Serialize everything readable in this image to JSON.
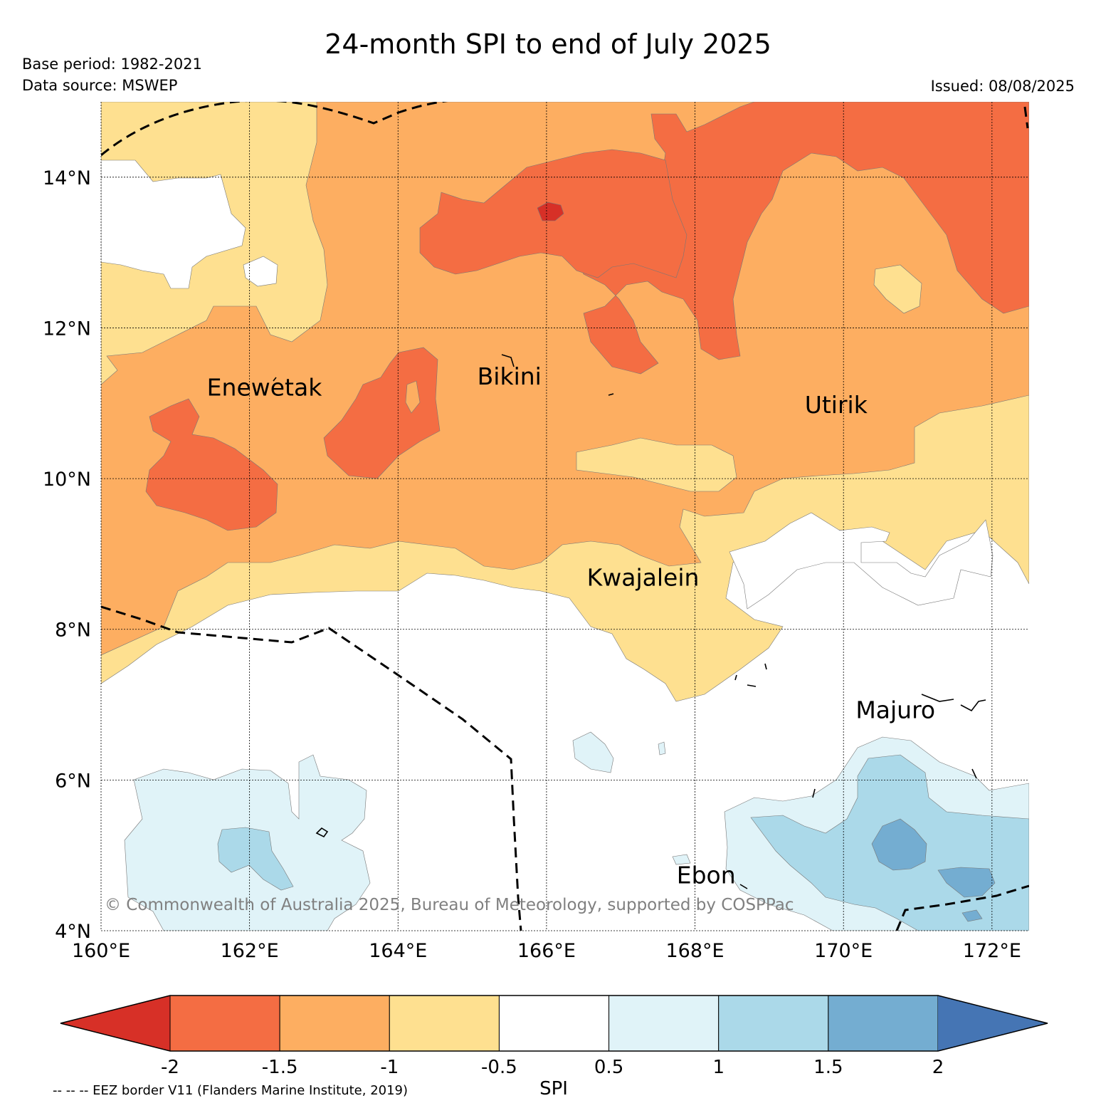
{
  "header": {
    "title": "24-month SPI to end of July 2025",
    "base_period": "Base period: 1982-2021",
    "data_source": "Data source: MSWEP",
    "issued": "Issued: 08/08/2025"
  },
  "map": {
    "lon_range": [
      160,
      172.5
    ],
    "lat_range": [
      4,
      15
    ],
    "lon_ticks": [
      {
        "value": 160,
        "label": "160°E"
      },
      {
        "value": 162,
        "label": "162°E"
      },
      {
        "value": 164,
        "label": "164°E"
      },
      {
        "value": 166,
        "label": "166°E"
      },
      {
        "value": 168,
        "label": "168°E"
      },
      {
        "value": 170,
        "label": "170°E"
      },
      {
        "value": 172,
        "label": "172°E"
      }
    ],
    "lat_ticks": [
      {
        "value": 14,
        "label": "14°N"
      },
      {
        "value": 12,
        "label": "12°N"
      },
      {
        "value": 10,
        "label": "10°N"
      },
      {
        "value": 8,
        "label": "8°N"
      },
      {
        "value": 6,
        "label": "6°N"
      },
      {
        "value": 4,
        "label": "4°N"
      }
    ],
    "places": [
      {
        "name": "Enewetak",
        "lon": 162.2,
        "lat": 11.1
      },
      {
        "name": "Bikini",
        "lon": 165.5,
        "lat": 11.25
      },
      {
        "name": "Utirik",
        "lon": 169.9,
        "lat": 10.87
      },
      {
        "name": "Kwajalein",
        "lon": 167.3,
        "lat": 8.58
      },
      {
        "name": "Majuro",
        "lon": 170.7,
        "lat": 6.82
      },
      {
        "name": "Ebon",
        "lon": 168.15,
        "lat": 4.63
      }
    ],
    "copyright": "© Commonwealth of Australia 2025, Bureau of Meteorology, supported by COSPPac",
    "eez_border_note": "-- -- -- EEZ border V11 (Flanders Marine Institute, 2019)"
  },
  "colorbar": {
    "label": "SPI",
    "ticks": [
      "-2",
      "-1.5",
      "-1",
      "-0.5",
      "0.5",
      "1",
      "1.5",
      "2"
    ],
    "under_color": "#d73027",
    "colors": [
      "#f46d43",
      "#fdae61",
      "#fee090",
      "#ffffff",
      "#e0f3f8",
      "#abd9e9",
      "#74add1"
    ],
    "over_color": "#4575b4",
    "grid_color": "#000000"
  }
}
